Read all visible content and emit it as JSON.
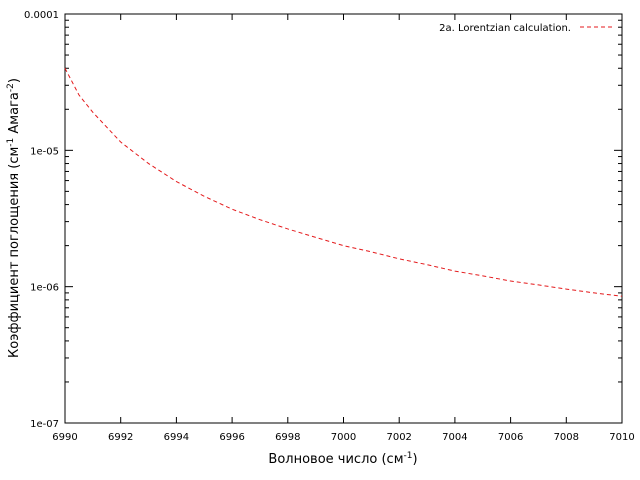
{
  "chart_data": {
    "type": "line",
    "title": "",
    "xlabel": {
      "base": "Волновое число (см",
      "sup": "-1",
      "tail": ")"
    },
    "ylabel": {
      "base": "Коэффициент поглощения (см",
      "sup1": "-1",
      "mid": " Амага",
      "sup2": "-2",
      "tail": ")"
    },
    "xlim": [
      6990,
      7010
    ],
    "ylim": [
      1e-07,
      0.0001
    ],
    "yscale": "log",
    "xticks": [
      6990,
      6992,
      6994,
      6996,
      6998,
      7000,
      7002,
      7004,
      7006,
      7008,
      7010
    ],
    "xtick_labels": [
      "6990",
      "6992",
      "6994",
      "6996",
      "6998",
      "7000",
      "7002",
      "7004",
      "7006",
      "7008",
      "7010"
    ],
    "yticks": [
      1e-07,
      1e-06,
      1e-05,
      0.0001
    ],
    "ytick_labels": [
      "1e-07",
      "1e-06",
      "1e-05",
      "0.0001"
    ],
    "grid": false,
    "legend": {
      "position": "top-right"
    },
    "series": [
      {
        "name": "2a. Lorentzian calculation.",
        "color": "#e41a1c",
        "style": "dashed",
        "x": [
          6990.0,
          6990.5,
          6991.0,
          6992.0,
          6993.0,
          6994.0,
          6995.0,
          6996.0,
          6997.0,
          6998.0,
          6999.0,
          7000.0,
          7001.0,
          7002.0,
          7003.0,
          7004.0,
          7005.0,
          7006.0,
          7007.0,
          7008.0,
          7009.0,
          7010.0
        ],
        "y": [
          4e-05,
          2.55e-05,
          1.9e-05,
          1.15e-05,
          8e-06,
          5.9e-06,
          4.6e-06,
          3.7e-06,
          3.1e-06,
          2.65e-06,
          2.3e-06,
          2e-06,
          1.8e-06,
          1.6e-06,
          1.45e-06,
          1.3e-06,
          1.2e-06,
          1.1e-06,
          1.03e-06,
          9.6e-07,
          9e-07,
          8.5e-07
        ]
      }
    ]
  }
}
